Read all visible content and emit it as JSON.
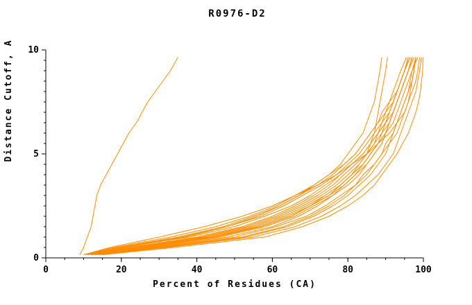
{
  "chart_data": {
    "type": "line",
    "title": "R0976-D2",
    "xlabel": "Percent of Residues (CA)",
    "ylabel": "Distance Cutoff, A",
    "xlim": [
      0,
      100
    ],
    "ylim": [
      0,
      10
    ],
    "x_major_ticks": [
      0,
      20,
      40,
      60,
      80,
      100
    ],
    "x_minor_step": 5,
    "y_major_ticks": [
      0,
      5,
      10
    ],
    "y_minor_step": 0.5,
    "line_color": "#ff8c00",
    "axis_color": "#000000",
    "legend": "none",
    "grid": false,
    "cutoffs": [
      0.15,
      0.5,
      1,
      1.5,
      2,
      2.5,
      3,
      3.5,
      4,
      4.5,
      5,
      5.5,
      6,
      6.5,
      7,
      7.5,
      8,
      8.5,
      9,
      9.65
    ],
    "series_x_percent": [
      [
        9,
        10,
        11,
        12,
        12.5,
        13,
        13.5,
        14.5,
        16,
        17.5,
        19,
        20.5,
        22,
        24,
        25.5,
        27,
        29,
        31,
        33,
        35
      ],
      [
        13,
        30,
        52,
        63,
        70,
        75,
        79,
        82,
        85,
        87,
        89,
        91,
        92,
        93,
        94,
        95,
        96,
        97,
        97.5,
        98
      ],
      [
        12,
        28,
        48,
        60,
        67,
        72,
        76,
        80,
        83,
        85,
        87,
        89,
        90,
        91,
        92,
        93,
        94,
        95,
        96,
        97
      ],
      [
        11,
        22,
        40,
        52,
        60,
        66,
        71,
        75,
        78,
        81,
        84,
        86,
        88,
        90,
        91,
        92,
        93,
        94,
        95,
        96.5
      ],
      [
        10,
        20,
        36,
        48,
        57,
        63,
        68,
        73,
        77,
        80,
        83,
        85,
        87,
        89,
        90,
        92,
        93,
        94,
        95,
        96
      ],
      [
        12,
        26,
        44,
        56,
        64,
        70,
        74,
        78,
        81,
        84,
        86,
        88,
        90,
        91,
        92,
        93,
        94,
        95,
        96,
        97.5
      ],
      [
        11,
        24,
        42,
        54,
        62,
        68,
        73,
        77,
        80,
        83,
        85,
        87,
        89,
        90,
        92,
        93,
        94,
        95,
        96,
        97
      ],
      [
        10,
        18,
        33,
        45,
        54,
        61,
        66,
        71,
        75,
        79,
        82,
        84,
        86,
        88,
        90,
        91,
        93,
        94,
        95,
        96.5
      ],
      [
        11,
        21,
        37,
        48,
        56,
        62,
        67,
        71,
        75,
        78,
        80,
        82,
        84,
        85,
        86,
        87,
        87.5,
        88,
        88.5,
        89
      ],
      [
        14,
        32,
        55,
        66,
        73,
        78,
        82,
        85,
        88,
        90,
        92,
        93,
        94,
        95,
        96,
        97,
        98,
        98.5,
        99,
        99.5
      ],
      [
        13,
        29,
        50,
        61,
        69,
        74,
        78,
        82,
        84,
        87,
        89,
        90,
        92,
        93,
        94,
        95,
        96,
        96.5,
        97,
        98
      ],
      [
        12,
        25,
        43,
        55,
        63,
        69,
        74,
        78,
        81,
        84,
        86,
        88,
        89,
        91,
        92,
        93,
        94,
        95,
        96,
        97
      ],
      [
        11,
        23,
        41,
        53,
        61,
        67,
        72,
        76,
        79,
        82,
        85,
        87,
        88,
        90,
        91,
        92,
        93,
        94,
        95,
        96
      ],
      [
        10,
        19,
        35,
        47,
        55,
        62,
        67,
        72,
        76,
        79,
        82,
        84,
        86,
        88,
        89,
        91,
        92,
        93,
        94,
        95.5
      ],
      [
        13,
        27,
        46,
        58,
        66,
        71,
        76,
        79,
        82,
        85,
        87,
        89,
        90,
        92,
        93,
        94,
        95,
        96,
        97,
        98.5
      ],
      [
        12,
        24,
        44,
        57,
        65,
        70,
        75,
        79,
        82,
        84,
        86,
        88,
        90,
        91,
        92,
        93,
        94,
        95,
        96,
        97
      ],
      [
        10,
        17,
        30,
        42,
        52,
        60,
        66,
        72,
        77,
        81,
        85,
        88,
        91,
        93,
        95,
        96,
        97,
        98,
        98.5,
        99
      ],
      [
        11,
        20,
        38,
        50,
        58,
        65,
        70,
        74,
        78,
        81,
        84,
        86,
        88,
        89,
        91,
        92,
        93,
        94,
        95,
        96
      ],
      [
        12,
        26,
        45,
        57,
        65,
        70,
        75,
        78,
        81,
        83,
        85,
        86,
        87,
        87.5,
        88,
        88.5,
        89,
        89.5,
        90,
        90.5
      ],
      [
        14,
        31,
        53,
        64,
        71,
        76,
        80,
        83,
        86,
        88,
        90,
        91,
        93,
        94,
        95,
        96,
        96.5,
        97,
        97.5,
        98
      ],
      [
        15,
        34,
        58,
        68,
        75,
        80,
        84,
        87,
        89,
        91,
        93,
        94.5,
        96,
        97,
        98,
        98.7,
        99.2,
        99.5,
        99.8,
        99.9
      ]
    ]
  }
}
